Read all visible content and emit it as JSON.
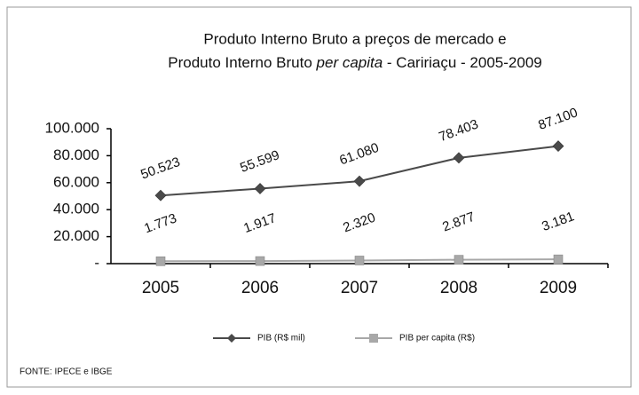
{
  "chart_data": {
    "type": "line",
    "title": [
      "Produto Interno Bruto a preços de mercado e",
      [
        "Produto Interno Bruto ",
        "per capita",
        " - Caririaçu - 2005-2009"
      ]
    ],
    "categories": [
      "2005",
      "2006",
      "2007",
      "2008",
      "2009"
    ],
    "series": [
      {
        "name": "PIB (R$ mil)",
        "color": "#4a4a4a",
        "marker": "diamond",
        "values": [
          50523,
          55599,
          61080,
          78403,
          87100
        ],
        "value_labels": [
          "50.523",
          "55.599",
          "61.080",
          "78.403",
          "87.100"
        ]
      },
      {
        "name": "PIB per capita (R$)",
        "color": "#a8a8a8",
        "marker": "square",
        "values": [
          1773,
          1917,
          2320,
          2877,
          3181
        ],
        "value_labels": [
          "1.773",
          "1.917",
          "2.320",
          "2.877",
          "3.181"
        ]
      }
    ],
    "ylim": [
      0,
      100000
    ],
    "yticks": [
      {
        "value": 0,
        "label": "-"
      },
      {
        "value": 20000,
        "label": "20.000"
      },
      {
        "value": 40000,
        "label": "40.000"
      },
      {
        "value": 60000,
        "label": "60.000"
      },
      {
        "value": 80000,
        "label": "80.000"
      },
      {
        "value": 100000,
        "label": "100.000"
      }
    ],
    "legend": "bottom",
    "source": "FONTE: IPECE e IBGE"
  }
}
